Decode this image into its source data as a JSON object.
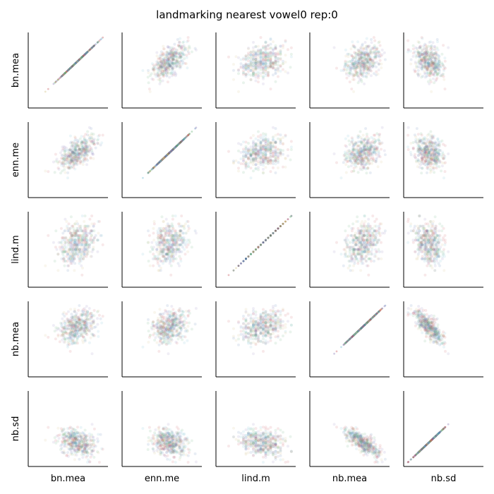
{
  "chart_data": {
    "type": "scatter",
    "layout": "scatter-matrix",
    "title": "landmarking nearest vowel0 rep:0",
    "variables": [
      "bn.mea",
      "enn.me",
      "lind.m",
      "nb.mea",
      "nb.sd"
    ],
    "discrete_variables": [
      "lind.m"
    ],
    "grid": false,
    "legend": "none",
    "point_colors": [
      "#4c72b0",
      "#55a868",
      "#c44e52",
      "#8172b2",
      "#ccb974",
      "#64b5cd"
    ],
    "point_opacity": 0.12,
    "ranges": {
      "bn.mea": [
        0.0,
        1.0
      ],
      "enn.me": [
        0.0,
        1.0
      ],
      "lind.m": [
        0.0,
        1.0
      ],
      "nb.mea": [
        0.0,
        1.0
      ],
      "nb.sd": [
        0.0,
        1.0
      ]
    },
    "centers": {
      "bn.mea": 0.62,
      "enn.me": 0.6,
      "lind.m": 0.58,
      "nb.mea": 0.68,
      "nb.sd": 0.3
    },
    "spreads": {
      "bn.mea": 0.13,
      "enn.me": 0.13,
      "lind.m": 0.15,
      "nb.mea": 0.12,
      "nb.sd": 0.1
    },
    "correlations": [
      [
        1.0,
        0.65,
        0.3,
        0.35,
        -0.3
      ],
      [
        0.65,
        1.0,
        0.25,
        0.35,
        -0.3
      ],
      [
        0.3,
        0.25,
        1.0,
        0.2,
        -0.2
      ],
      [
        0.35,
        0.35,
        0.2,
        1.0,
        -0.75
      ],
      [
        -0.3,
        -0.3,
        -0.2,
        -0.75,
        1.0
      ]
    ],
    "n_points": 450
  }
}
